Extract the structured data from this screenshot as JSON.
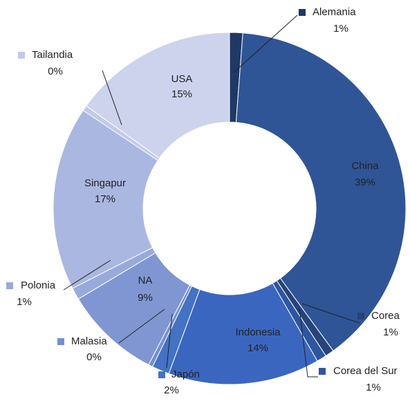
{
  "chart_data": {
    "type": "donut",
    "categories": [
      "Alemania",
      "China",
      "Corea",
      "Corea del Sur",
      "Indonesia",
      "Japón",
      "Malasia",
      "NA",
      "Polonia",
      "Singapur",
      "Tailandia",
      "USA"
    ],
    "values": [
      1.2,
      38.8,
      0.8,
      0.9,
      13.9,
      1.6,
      0.4,
      8.8,
      1.1,
      16.9,
      0.5,
      15.1
    ],
    "value_labels": [
      "1%",
      "39%",
      "1%",
      "1%",
      "14%",
      "2%",
      "0%",
      "9%",
      "1%",
      "17%",
      "0%",
      "15%"
    ],
    "colors": [
      "#1f3864",
      "#2f5597",
      "#264478",
      "#2d56a0",
      "#3a66c0",
      "#4472c4",
      "#7390d2",
      "#7f96d2",
      "#98aadb",
      "#aab7e0",
      "#c2cae8",
      "#cdd3ec"
    ]
  }
}
